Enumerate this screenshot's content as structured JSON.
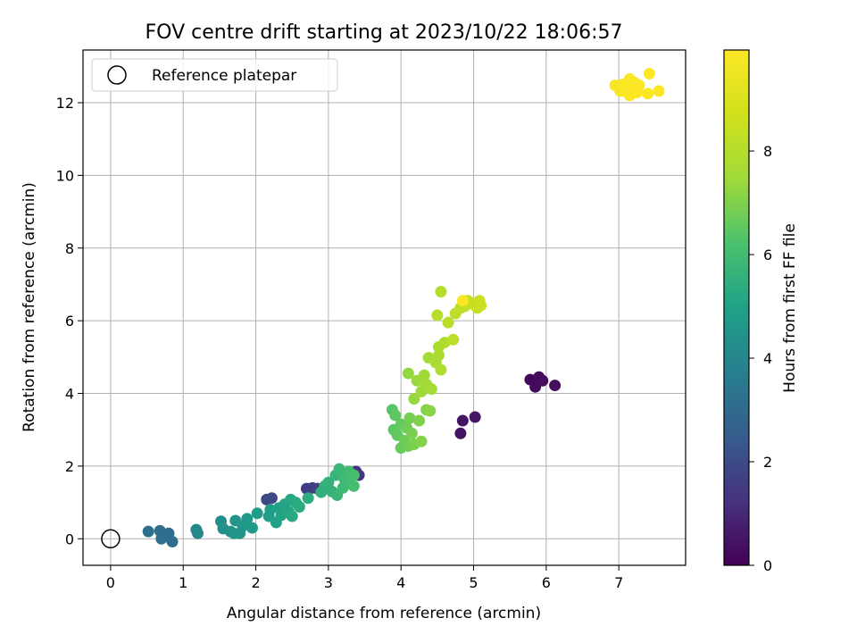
{
  "chart_data": {
    "type": "scatter",
    "title": "FOV centre drift starting at 2023/10/22 18:06:57",
    "xlabel": "Angular distance from reference (arcmin)",
    "ylabel": "Rotation from reference (arcmin)",
    "xlim": [
      -0.38,
      7.92
    ],
    "ylim": [
      -0.73,
      13.45
    ],
    "xticks": [
      0,
      1,
      2,
      3,
      4,
      5,
      6,
      7
    ],
    "yticks": [
      0,
      2,
      4,
      6,
      8,
      10,
      12
    ],
    "grid": true,
    "colormap": "viridis",
    "legend": {
      "position": "top-left",
      "entries": [
        {
          "label": "Reference platepar",
          "marker": "open-circle"
        }
      ]
    },
    "colorbar": {
      "label": "Hours from first FF file",
      "range": [
        0,
        9.95
      ],
      "ticks": [
        0,
        2,
        4,
        6,
        8
      ]
    },
    "reference_point": {
      "x": 0,
      "y": 0
    },
    "points": [
      {
        "x": 5.78,
        "y": 4.38,
        "c": 0.15
      },
      {
        "x": 5.85,
        "y": 4.18,
        "c": 0.2
      },
      {
        "x": 5.9,
        "y": 4.45,
        "c": 0.25
      },
      {
        "x": 5.95,
        "y": 4.35,
        "c": 0.3
      },
      {
        "x": 6.12,
        "y": 4.22,
        "c": 0.35
      },
      {
        "x": 4.82,
        "y": 2.9,
        "c": 0.45
      },
      {
        "x": 4.85,
        "y": 3.25,
        "c": 0.5
      },
      {
        "x": 5.02,
        "y": 3.35,
        "c": 0.55
      },
      {
        "x": 3.38,
        "y": 1.85,
        "c": 1.3
      },
      {
        "x": 3.42,
        "y": 1.75,
        "c": 1.35
      },
      {
        "x": 3.3,
        "y": 1.78,
        "c": 1.4
      },
      {
        "x": 2.7,
        "y": 1.38,
        "c": 1.55
      },
      {
        "x": 2.78,
        "y": 1.4,
        "c": 1.6
      },
      {
        "x": 2.85,
        "y": 1.38,
        "c": 1.65
      },
      {
        "x": 2.15,
        "y": 1.08,
        "c": 1.9
      },
      {
        "x": 2.22,
        "y": 1.12,
        "c": 1.95
      },
      {
        "x": 0.8,
        "y": 0.15,
        "c": 3.0
      },
      {
        "x": 0.85,
        "y": -0.08,
        "c": 3.05
      },
      {
        "x": 0.68,
        "y": 0.22,
        "c": 3.1
      },
      {
        "x": 0.7,
        "y": 0.0,
        "c": 3.15
      },
      {
        "x": 0.52,
        "y": 0.2,
        "c": 3.2
      },
      {
        "x": 1.18,
        "y": 0.25,
        "c": 4.0
      },
      {
        "x": 1.2,
        "y": 0.15,
        "c": 4.05
      },
      {
        "x": 1.52,
        "y": 0.48,
        "c": 4.3
      },
      {
        "x": 1.55,
        "y": 0.28,
        "c": 4.35
      },
      {
        "x": 1.65,
        "y": 0.2,
        "c": 4.4
      },
      {
        "x": 1.7,
        "y": 0.15,
        "c": 4.45
      },
      {
        "x": 1.72,
        "y": 0.5,
        "c": 4.5
      },
      {
        "x": 1.78,
        "y": 0.15,
        "c": 4.55
      },
      {
        "x": 1.82,
        "y": 0.35,
        "c": 4.6
      },
      {
        "x": 1.88,
        "y": 0.55,
        "c": 4.65
      },
      {
        "x": 1.95,
        "y": 0.3,
        "c": 4.7
      },
      {
        "x": 2.02,
        "y": 0.7,
        "c": 4.8
      },
      {
        "x": 2.18,
        "y": 0.62,
        "c": 4.85
      },
      {
        "x": 2.2,
        "y": 0.8,
        "c": 4.9
      },
      {
        "x": 2.28,
        "y": 0.45,
        "c": 4.95
      },
      {
        "x": 2.32,
        "y": 0.85,
        "c": 5.0
      },
      {
        "x": 2.35,
        "y": 0.65,
        "c": 5.05
      },
      {
        "x": 2.4,
        "y": 0.95,
        "c": 5.1
      },
      {
        "x": 2.45,
        "y": 0.75,
        "c": 5.15
      },
      {
        "x": 2.48,
        "y": 1.08,
        "c": 5.2
      },
      {
        "x": 2.5,
        "y": 0.62,
        "c": 5.25
      },
      {
        "x": 2.55,
        "y": 1.0,
        "c": 5.3
      },
      {
        "x": 2.6,
        "y": 0.88,
        "c": 5.35
      },
      {
        "x": 2.72,
        "y": 1.12,
        "c": 5.45
      },
      {
        "x": 2.9,
        "y": 1.28,
        "c": 5.5
      },
      {
        "x": 2.95,
        "y": 1.45,
        "c": 5.55
      },
      {
        "x": 3.0,
        "y": 1.55,
        "c": 5.6
      },
      {
        "x": 3.05,
        "y": 1.3,
        "c": 5.65
      },
      {
        "x": 3.1,
        "y": 1.75,
        "c": 5.7
      },
      {
        "x": 3.12,
        "y": 1.2,
        "c": 5.75
      },
      {
        "x": 3.15,
        "y": 1.92,
        "c": 5.8
      },
      {
        "x": 3.2,
        "y": 1.4,
        "c": 5.85
      },
      {
        "x": 3.22,
        "y": 1.65,
        "c": 5.9
      },
      {
        "x": 3.28,
        "y": 1.85,
        "c": 5.95
      },
      {
        "x": 3.3,
        "y": 1.55,
        "c": 6.0
      },
      {
        "x": 3.35,
        "y": 1.45,
        "c": 6.05
      },
      {
        "x": 3.35,
        "y": 1.75,
        "c": 6.1
      },
      {
        "x": 3.88,
        "y": 3.55,
        "c": 6.4
      },
      {
        "x": 3.9,
        "y": 3.0,
        "c": 6.45
      },
      {
        "x": 3.92,
        "y": 3.4,
        "c": 6.5
      },
      {
        "x": 3.95,
        "y": 2.85,
        "c": 6.55
      },
      {
        "x": 4.0,
        "y": 3.15,
        "c": 6.6
      },
      {
        "x": 4.0,
        "y": 2.5,
        "c": 6.65
      },
      {
        "x": 4.05,
        "y": 2.7,
        "c": 6.7
      },
      {
        "x": 4.08,
        "y": 3.05,
        "c": 6.75
      },
      {
        "x": 4.1,
        "y": 2.55,
        "c": 6.8
      },
      {
        "x": 4.12,
        "y": 3.32,
        "c": 6.85
      },
      {
        "x": 4.15,
        "y": 2.9,
        "c": 6.9
      },
      {
        "x": 4.18,
        "y": 2.6,
        "c": 6.95
      },
      {
        "x": 4.25,
        "y": 3.25,
        "c": 7.0
      },
      {
        "x": 4.28,
        "y": 2.68,
        "c": 7.05
      },
      {
        "x": 4.35,
        "y": 3.55,
        "c": 7.1
      },
      {
        "x": 4.4,
        "y": 3.52,
        "c": 7.15
      },
      {
        "x": 4.1,
        "y": 4.55,
        "c": 7.3
      },
      {
        "x": 4.18,
        "y": 3.85,
        "c": 7.35
      },
      {
        "x": 4.22,
        "y": 4.35,
        "c": 7.4
      },
      {
        "x": 4.28,
        "y": 4.05,
        "c": 7.45
      },
      {
        "x": 4.32,
        "y": 4.5,
        "c": 7.5
      },
      {
        "x": 4.35,
        "y": 4.25,
        "c": 7.55
      },
      {
        "x": 4.38,
        "y": 4.98,
        "c": 7.6
      },
      {
        "x": 4.42,
        "y": 4.12,
        "c": 7.65
      },
      {
        "x": 4.48,
        "y": 4.85,
        "c": 7.7
      },
      {
        "x": 4.52,
        "y": 5.05,
        "c": 7.75
      },
      {
        "x": 4.52,
        "y": 5.28,
        "c": 7.8
      },
      {
        "x": 4.55,
        "y": 4.65,
        "c": 7.85
      },
      {
        "x": 4.6,
        "y": 5.4,
        "c": 7.9
      },
      {
        "x": 4.55,
        "y": 6.8,
        "c": 8.0
      },
      {
        "x": 4.5,
        "y": 6.15,
        "c": 8.05
      },
      {
        "x": 4.65,
        "y": 5.95,
        "c": 8.1
      },
      {
        "x": 4.72,
        "y": 5.48,
        "c": 8.15
      },
      {
        "x": 4.75,
        "y": 6.2,
        "c": 8.2
      },
      {
        "x": 4.82,
        "y": 6.35,
        "c": 8.25
      },
      {
        "x": 4.88,
        "y": 6.4,
        "c": 8.3
      },
      {
        "x": 4.92,
        "y": 6.55,
        "c": 8.35
      },
      {
        "x": 5.0,
        "y": 6.45,
        "c": 8.4
      },
      {
        "x": 5.05,
        "y": 6.35,
        "c": 8.45
      },
      {
        "x": 5.08,
        "y": 6.55,
        "c": 8.5
      },
      {
        "x": 5.1,
        "y": 6.42,
        "c": 8.55
      },
      {
        "x": 4.85,
        "y": 6.55,
        "c": 9.85
      },
      {
        "x": 6.95,
        "y": 12.48,
        "c": 9.8
      },
      {
        "x": 7.02,
        "y": 12.32,
        "c": 9.82
      },
      {
        "x": 7.05,
        "y": 12.5,
        "c": 9.84
      },
      {
        "x": 7.1,
        "y": 12.3,
        "c": 9.86
      },
      {
        "x": 7.12,
        "y": 12.55,
        "c": 9.88
      },
      {
        "x": 7.15,
        "y": 12.65,
        "c": 9.9
      },
      {
        "x": 7.15,
        "y": 12.2,
        "c": 9.91
      },
      {
        "x": 7.2,
        "y": 12.4,
        "c": 9.92
      },
      {
        "x": 7.22,
        "y": 12.55,
        "c": 9.93
      },
      {
        "x": 7.25,
        "y": 12.28,
        "c": 9.94
      },
      {
        "x": 7.28,
        "y": 12.48,
        "c": 9.95
      },
      {
        "x": 7.4,
        "y": 12.25,
        "c": 9.95
      },
      {
        "x": 7.42,
        "y": 12.8,
        "c": 9.95
      },
      {
        "x": 7.55,
        "y": 12.32,
        "c": 9.95
      }
    ]
  }
}
